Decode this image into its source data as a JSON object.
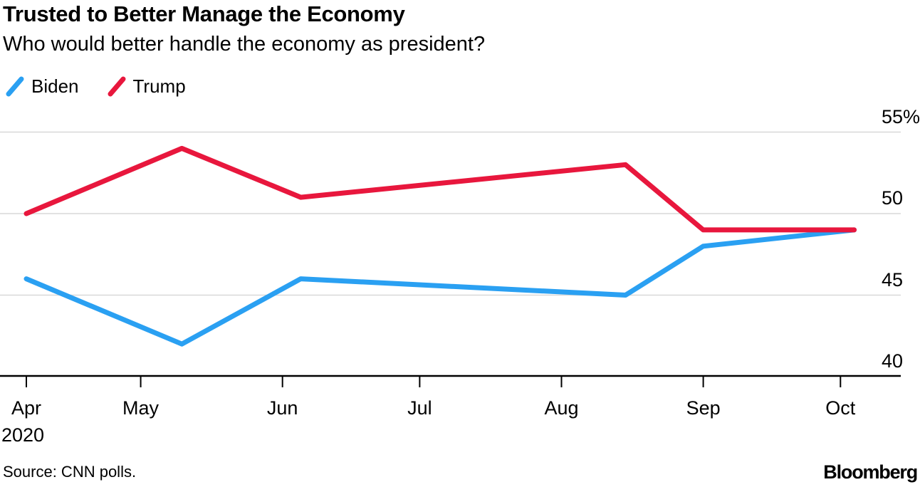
{
  "header": {
    "title": "Trusted to Better Manage the Economy",
    "subtitle": "Who would better handle the economy as president?"
  },
  "chart_data": {
    "type": "line",
    "title": "Trusted to Better Manage the Economy",
    "subtitle": "Who would better handle the economy as president?",
    "unit": "percent",
    "grid": "horizontal",
    "legend_position": "top-left",
    "x": [
      "Apr 6, 2020",
      "May 10, 2020",
      "Jun 5, 2020",
      "Aug 15, 2020",
      "Sep 1, 2020",
      "Oct 4, 2020"
    ],
    "x_day_offsets": [
      0,
      34,
      60,
      131,
      148,
      181
    ],
    "series": [
      {
        "name": "Biden",
        "color": "#2AA0F2",
        "values": [
          46,
          42,
          46,
          45,
          48,
          49
        ]
      },
      {
        "name": "Trump",
        "color": "#E8173D",
        "values": [
          50,
          54,
          51,
          53,
          49,
          49
        ]
      }
    ],
    "y_axis": {
      "min": 40,
      "max": 55,
      "ticks": [
        {
          "value": 40,
          "label": "40"
        },
        {
          "value": 45,
          "label": "45"
        },
        {
          "value": 50,
          "label": "50"
        },
        {
          "value": 55,
          "label": "55",
          "suffix": "%"
        }
      ]
    },
    "x_axis": {
      "year_label": "2020",
      "ticks": [
        {
          "label": "Apr",
          "day": 0
        },
        {
          "label": "May",
          "day": 25
        },
        {
          "label": "Jun",
          "day": 56
        },
        {
          "label": "Jul",
          "day": 86
        },
        {
          "label": "Aug",
          "day": 117
        },
        {
          "label": "Sep",
          "day": 148
        },
        {
          "label": "Oct",
          "day": 178
        }
      ]
    }
  },
  "footer": {
    "source": "Source: CNN polls.",
    "brand": "Bloomberg"
  }
}
